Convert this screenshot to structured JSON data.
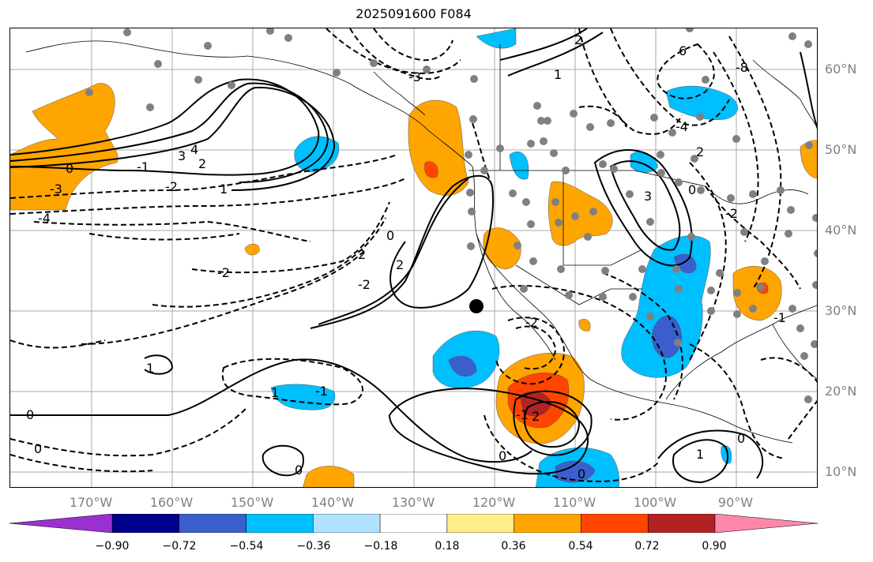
{
  "title": "2025091600 F084",
  "lat_labels": [
    "60°N",
    "50°N",
    "40°N",
    "30°N",
    "20°N",
    "10°N"
  ],
  "lon_labels": [
    "170°W",
    "160°W",
    "150°W",
    "140°W",
    "130°W",
    "120°W",
    "110°W",
    "100°W",
    "90°W"
  ],
  "colorbar": {
    "ticks": [
      "−0.90",
      "−0.72",
      "−0.54",
      "−0.36",
      "−0.18",
      "0.18",
      "0.36",
      "0.54",
      "0.72",
      "0.90"
    ],
    "colors": [
      "#9b30d0",
      "#00008b",
      "#3a5fcd",
      "#00bfff",
      "#b0e2ff",
      "#ffffff",
      "#ffec8b",
      "#ffa500",
      "#ff4500",
      "#b22222",
      "#ff88aa"
    ]
  },
  "contour_labels": [
    "4",
    "3",
    "2",
    "1",
    "0",
    "-1",
    "-2",
    "-3",
    "-4",
    "-2",
    "2",
    "0",
    "-2",
    "-3",
    "2",
    "2",
    "-1",
    "0",
    "0",
    "3",
    "-4",
    "6",
    "-8",
    "2",
    "1",
    "-2",
    "0",
    "0",
    "-1",
    "1",
    "2",
    "0",
    "0",
    "1",
    "0",
    "1",
    "-1",
    "-2"
  ]
}
